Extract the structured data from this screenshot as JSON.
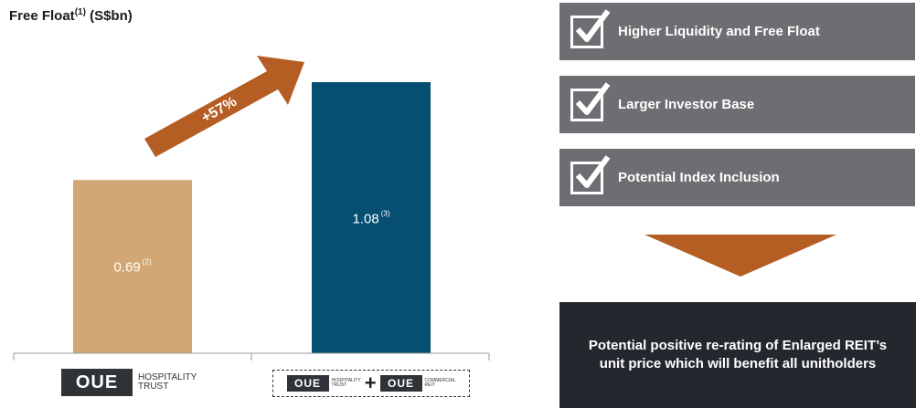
{
  "chart_data": {
    "type": "bar",
    "title": "Free Float",
    "title_note": "(1)",
    "title_unit": "(S$bn)",
    "categories": [
      "OUE Hospitality Trust",
      "OUE Hospitality Trust + OUE Commercial REIT"
    ],
    "values": [
      0.69,
      1.08
    ],
    "value_labels": [
      "0.69",
      "1.08"
    ],
    "value_notes": [
      "(2)",
      "(3)"
    ],
    "colors": [
      "#d3a775",
      "#064f73"
    ],
    "growth_label": "+57%",
    "arrow_color": "#b45e24",
    "ylim": [
      0,
      1.2
    ],
    "grid": false
  },
  "logos": {
    "left": {
      "mark": "OUE",
      "line1": "HOSPITALITY",
      "line2": "TRUST"
    },
    "right": {
      "a": {
        "mark": "OUE",
        "line1": "HOSPITALITY",
        "line2": "TRUST"
      },
      "plus": "+",
      "b": {
        "mark": "OUE",
        "line1": "COMMERCIAL",
        "line2": "REIT"
      }
    }
  },
  "benefits": [
    {
      "label": "Higher Liquidity and Free Float",
      "icon": "checkbox-check-icon"
    },
    {
      "label": "Larger Investor Base",
      "icon": "checkbox-check-icon"
    },
    {
      "label": "Potential Index Inclusion",
      "icon": "checkbox-check-icon"
    }
  ],
  "result": {
    "line1": "Potential positive re-rating of Enlarged REIT’s",
    "line2": "unit price which will benefit all unitholders"
  },
  "colors": {
    "benefit_bg": "#6d6e71",
    "result_bg": "#24282e",
    "down_arrow": "#b45e24"
  }
}
